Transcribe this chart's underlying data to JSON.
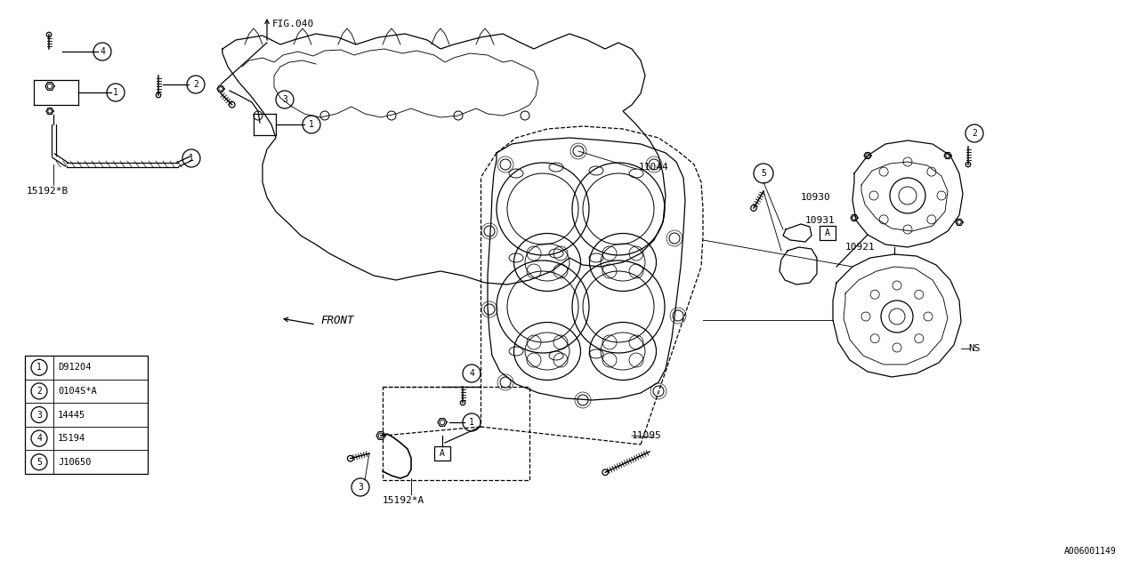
{
  "bg_color": "#ffffff",
  "line_color": "#000000",
  "fig_width": 12.8,
  "fig_height": 6.4,
  "legend_items": [
    {
      "num": "1",
      "code": "D91204"
    },
    {
      "num": "2",
      "code": "0104S*A"
    },
    {
      "num": "3",
      "code": "14445"
    },
    {
      "num": "4",
      "code": "15194"
    },
    {
      "num": "5",
      "code": "J10650"
    }
  ],
  "labels": {
    "fig040": "FIG.040",
    "front": "FRONT",
    "11044": "11044",
    "11095": "11095",
    "10930": "10930",
    "10931": "10931",
    "10921": "10921",
    "ns": "NS",
    "15192B": "15192*B",
    "15192A": "15192*A",
    "ref": "A006001149"
  }
}
